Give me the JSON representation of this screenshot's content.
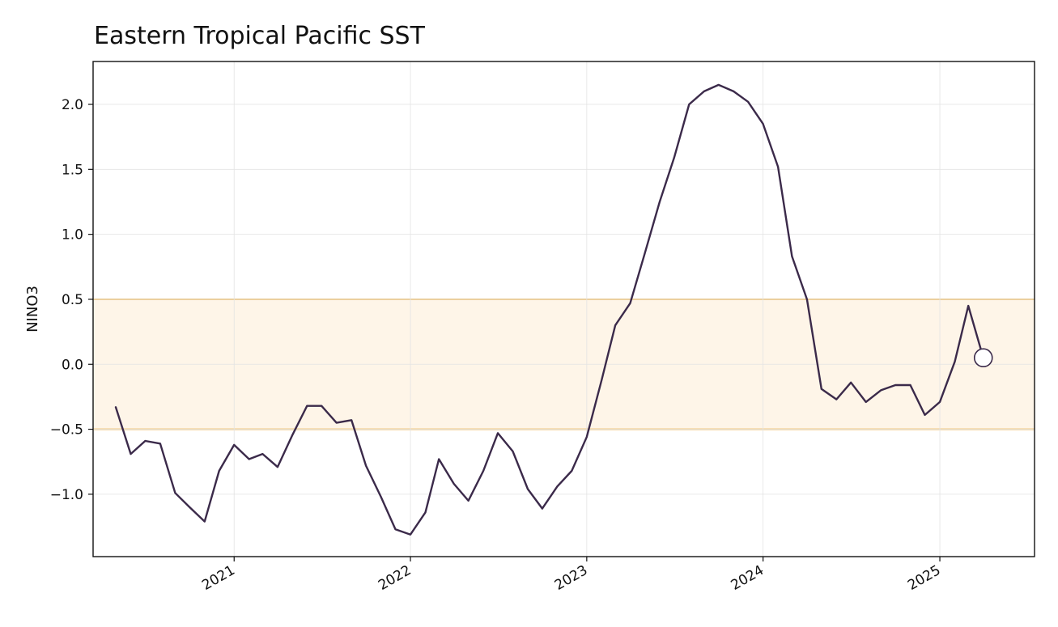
{
  "chart_data": {
    "type": "line",
    "title": "Eastern Tropical Pacific SST",
    "xlabel": "",
    "ylabel": "NINO3",
    "x_type": "date",
    "xlim": [
      "2020-03-15",
      "2025-07-16"
    ],
    "ylim": [
      -1.48,
      2.33
    ],
    "yticks": [
      -1.0,
      -0.5,
      0.0,
      0.5,
      1.0,
      1.5,
      2.0
    ],
    "ytick_labels": [
      "−1.0",
      "−0.5",
      "0.0",
      "0.5",
      "1.0",
      "1.5",
      "2.0"
    ],
    "xticks": [
      "2021-01-01",
      "2022-01-01",
      "2023-01-01",
      "2024-01-01",
      "2025-01-01"
    ],
    "xtick_labels": [
      "2021",
      "2022",
      "2023",
      "2024",
      "2025"
    ],
    "grid": true,
    "band": {
      "y0": -0.5,
      "y1": 0.5,
      "fill": "#fef5e8",
      "line": "#f0b85a"
    },
    "line_color": "#3b2a4a",
    "marker": {
      "x": "2025-04-01",
      "y": 0.05
    },
    "series": [
      {
        "x": [
          "2020-05-01",
          "2020-06-01",
          "2020-07-01",
          "2020-08-01",
          "2020-09-01",
          "2020-10-01",
          "2020-11-01",
          "2020-12-01",
          "2021-01-01",
          "2021-02-01",
          "2021-03-01",
          "2021-04-01",
          "2021-05-01",
          "2021-06-01",
          "2021-07-01",
          "2021-08-01",
          "2021-09-01",
          "2021-10-01",
          "2021-11-01",
          "2021-12-01",
          "2022-01-01",
          "2022-02-01",
          "2022-03-01",
          "2022-04-01",
          "2022-05-01",
          "2022-06-01",
          "2022-07-01",
          "2022-08-01",
          "2022-09-01",
          "2022-10-01",
          "2022-11-01",
          "2022-12-01",
          "2023-01-01",
          "2023-02-01",
          "2023-03-01",
          "2023-04-01",
          "2023-05-01",
          "2023-06-01",
          "2023-07-01",
          "2023-08-01",
          "2023-09-01",
          "2023-10-01",
          "2023-11-01",
          "2023-12-01",
          "2024-01-01",
          "2024-02-01",
          "2024-03-01",
          "2024-04-01",
          "2024-05-01",
          "2024-06-01",
          "2024-07-01",
          "2024-08-01",
          "2024-09-01",
          "2024-10-01",
          "2024-11-01",
          "2024-12-01",
          "2025-01-01",
          "2025-02-01",
          "2025-03-01",
          "2025-04-01"
        ],
        "values": [
          -0.33,
          -0.69,
          -0.59,
          -0.61,
          -0.99,
          -1.1,
          -1.21,
          -0.82,
          -0.62,
          -0.73,
          -0.69,
          -0.79,
          -0.55,
          -0.32,
          -0.32,
          -0.45,
          -0.43,
          -0.78,
          -1.02,
          -1.27,
          -1.31,
          -1.14,
          -0.73,
          -0.92,
          -1.05,
          -0.82,
          -0.53,
          -0.67,
          -0.96,
          -1.11,
          -0.94,
          -0.82,
          -0.56,
          -0.12,
          0.3,
          0.47,
          0.85,
          1.25,
          1.59,
          2.0,
          2.1,
          2.15,
          2.1,
          2.02,
          1.85,
          1.52,
          0.83,
          0.5,
          -0.19,
          -0.27,
          -0.14,
          -0.29,
          -0.2,
          -0.16,
          -0.16,
          -0.39,
          -0.29,
          0.02,
          0.45,
          0.05
        ]
      }
    ]
  }
}
